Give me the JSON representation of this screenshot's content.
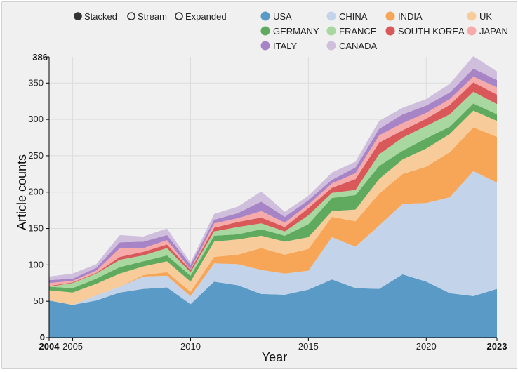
{
  "chart_data": {
    "type": "area",
    "stacked": true,
    "title": "",
    "xlabel": "Year",
    "ylabel": "Article counts",
    "x": [
      2004,
      2005,
      2006,
      2007,
      2008,
      2009,
      2010,
      2011,
      2012,
      2013,
      2014,
      2015,
      2016,
      2017,
      2018,
      2019,
      2020,
      2021,
      2022,
      2023
    ],
    "xlim": [
      2004,
      2023
    ],
    "ylim": [
      0,
      386
    ],
    "x_ticks": [
      "2004",
      "2005",
      "2010",
      "2015",
      "2020",
      "2023"
    ],
    "x_ticks_bold": [
      "2004",
      "2023"
    ],
    "y_ticks": [
      "0",
      "50",
      "100",
      "150",
      "200",
      "250",
      "300",
      "350",
      "386"
    ],
    "y_ticks_bold": [
      "0",
      "386"
    ],
    "series": [
      {
        "name": "USA",
        "color": "#5a9ac6",
        "values": [
          51,
          45,
          51,
          62,
          67,
          69,
          46,
          77,
          72,
          60,
          59,
          66,
          80,
          68,
          67,
          87,
          77,
          61,
          57,
          67
        ]
      },
      {
        "name": "CHINA",
        "color": "#c3d4ea",
        "values": [
          0,
          0,
          7,
          8,
          17,
          16,
          11,
          25,
          29,
          33,
          29,
          26,
          58,
          57,
          87,
          97,
          108,
          132,
          172,
          146
        ]
      },
      {
        "name": "INDIA",
        "color": "#f7a658",
        "values": [
          0,
          0,
          0,
          0,
          2,
          5,
          6,
          9,
          13,
          30,
          26,
          30,
          28,
          35,
          44,
          41,
          50,
          62,
          60,
          63
        ]
      },
      {
        "name": "UK",
        "color": "#f8cc9a",
        "values": [
          14,
          17,
          16,
          18,
          12,
          15,
          14,
          21,
          21,
          17,
          18,
          16,
          8,
          16,
          20,
          20,
          25,
          25,
          23,
          22
        ]
      },
      {
        "name": "GERMANY",
        "color": "#5faa5e",
        "values": [
          5,
          6,
          7,
          9,
          7,
          8,
          8,
          8,
          7,
          9,
          8,
          18,
          18,
          20,
          18,
          12,
          14,
          10,
          10,
          9
        ]
      },
      {
        "name": "FRANCE",
        "color": "#a8d8a0",
        "values": [
          0,
          7,
          7,
          10,
          8,
          10,
          5,
          6,
          10,
          8,
          6,
          12,
          7,
          7,
          16,
          18,
          17,
          17,
          16,
          14
        ]
      },
      {
        "name": "SOUTH KOREA",
        "color": "#d9595a",
        "values": [
          1,
          1,
          1,
          4,
          5,
          5,
          3,
          5,
          7,
          8,
          6,
          10,
          7,
          15,
          16,
          10,
          10,
          13,
          13,
          13
        ]
      },
      {
        "name": "JAPAN",
        "color": "#f6aaaa",
        "values": [
          4,
          2,
          3,
          12,
          5,
          6,
          1,
          6,
          5,
          9,
          6,
          5,
          6,
          8,
          10,
          10,
          8,
          8,
          8,
          10
        ]
      },
      {
        "name": "ITALY",
        "color": "#a784c6",
        "values": [
          4,
          3,
          4,
          8,
          9,
          7,
          6,
          5,
          7,
          13,
          8,
          6,
          5,
          8,
          9,
          12,
          10,
          9,
          11,
          10
        ]
      },
      {
        "name": "CANADA",
        "color": "#d0bedd",
        "values": [
          5,
          7,
          5,
          10,
          7,
          9,
          3,
          8,
          9,
          14,
          7,
          6,
          10,
          8,
          11,
          9,
          9,
          12,
          17,
          12
        ]
      }
    ]
  },
  "modes": [
    {
      "label": "Stacked",
      "selected": true
    },
    {
      "label": "Stream",
      "selected": false
    },
    {
      "label": "Expanded",
      "selected": false
    }
  ]
}
